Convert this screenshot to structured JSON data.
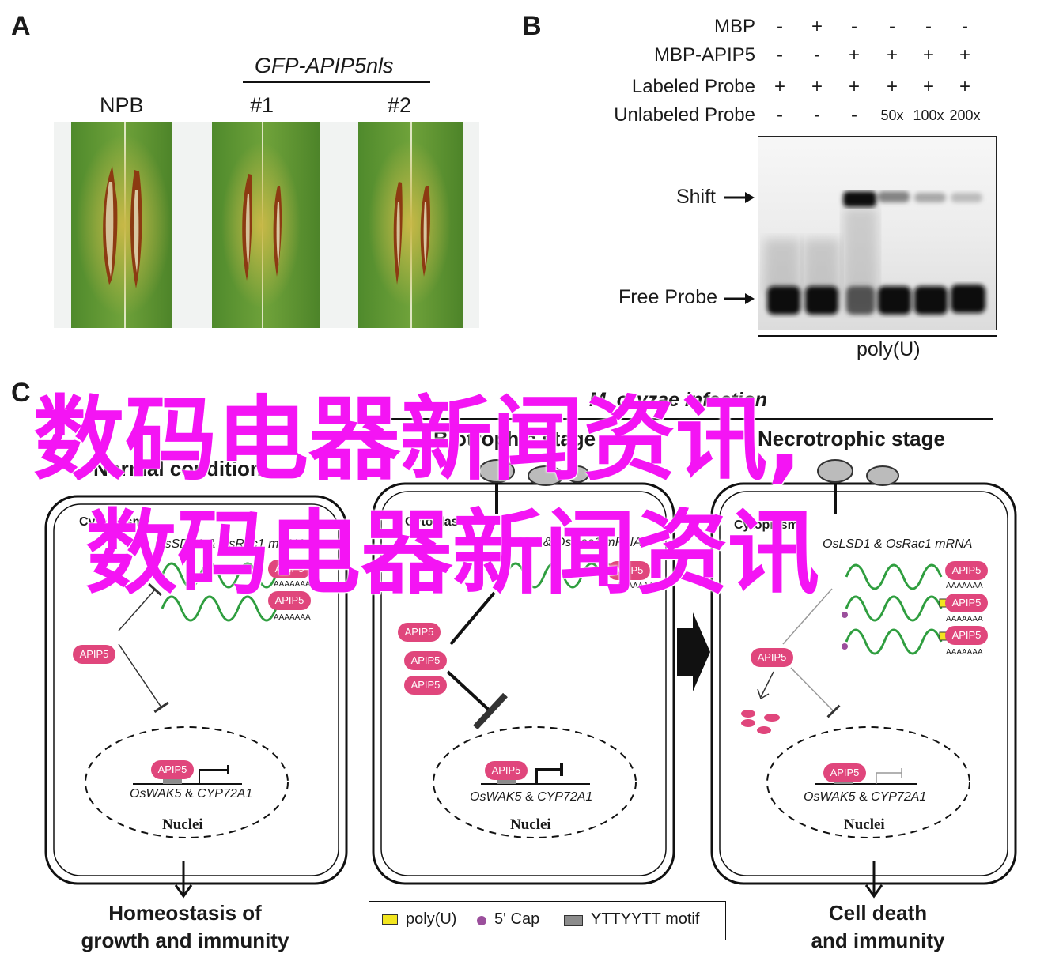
{
  "panelA": {
    "letter": "A",
    "construct": "GFP-APIP5nls",
    "labels": [
      "NPB",
      "#1",
      "#2"
    ]
  },
  "panelB": {
    "letter": "B",
    "rows": [
      {
        "label": "MBP",
        "values": [
          "-",
          "+",
          "-",
          "-",
          "-",
          "-"
        ]
      },
      {
        "label": "MBP-APIP5",
        "values": [
          "-",
          "-",
          "+",
          "+",
          "+",
          "+"
        ]
      },
      {
        "label": "Labeled Probe",
        "values": [
          "+",
          "+",
          "+",
          "+",
          "+",
          "+"
        ]
      },
      {
        "label": "Unlabeled Probe",
        "values": [
          "-",
          "-",
          "-",
          "50x",
          "100x",
          "200x"
        ]
      }
    ],
    "shift_label": "Shift",
    "free_label": "Free Probe",
    "probe_label": "poly(U)"
  },
  "panelC": {
    "letter": "C",
    "infection_title": "M. oryzae infection",
    "stages": [
      "Normal condition",
      "Biotrophic stage",
      "Necrotrophic stage"
    ],
    "cytoplasm": "Cytoplasm",
    "mrna_cells": [
      "OsSDT1 & OsRac1 mRNA",
      "OsLSD1 & OsRac1 mRNA",
      "OsLSD1 & OsRac1 mRNA"
    ],
    "apip5": "APIP5",
    "polyA": "AAAAAAA",
    "genes_a": "OsWAK5",
    "genes_amp": " & ",
    "genes_b": "CYP72A1",
    "nuclei": "Nuclei",
    "outcome_left": [
      "Homeostasis of",
      "growth and immunity"
    ],
    "outcome_right": [
      "Cell death",
      "and immunity"
    ],
    "legend": {
      "polyU": "poly(U)",
      "cap": "5' Cap",
      "motif": "YTTYYTT motif"
    },
    "colors": {
      "apip5": "#e0467c",
      "wave": "#2f9e3f",
      "cap": "#9b4f9c",
      "polyu": "#f2e51f",
      "motif": "#8c8c8c"
    }
  },
  "watermark": {
    "line1": "数码电器新闻资讯,",
    "line2": "数码电器新闻资讯",
    "color": "#f414f4"
  }
}
